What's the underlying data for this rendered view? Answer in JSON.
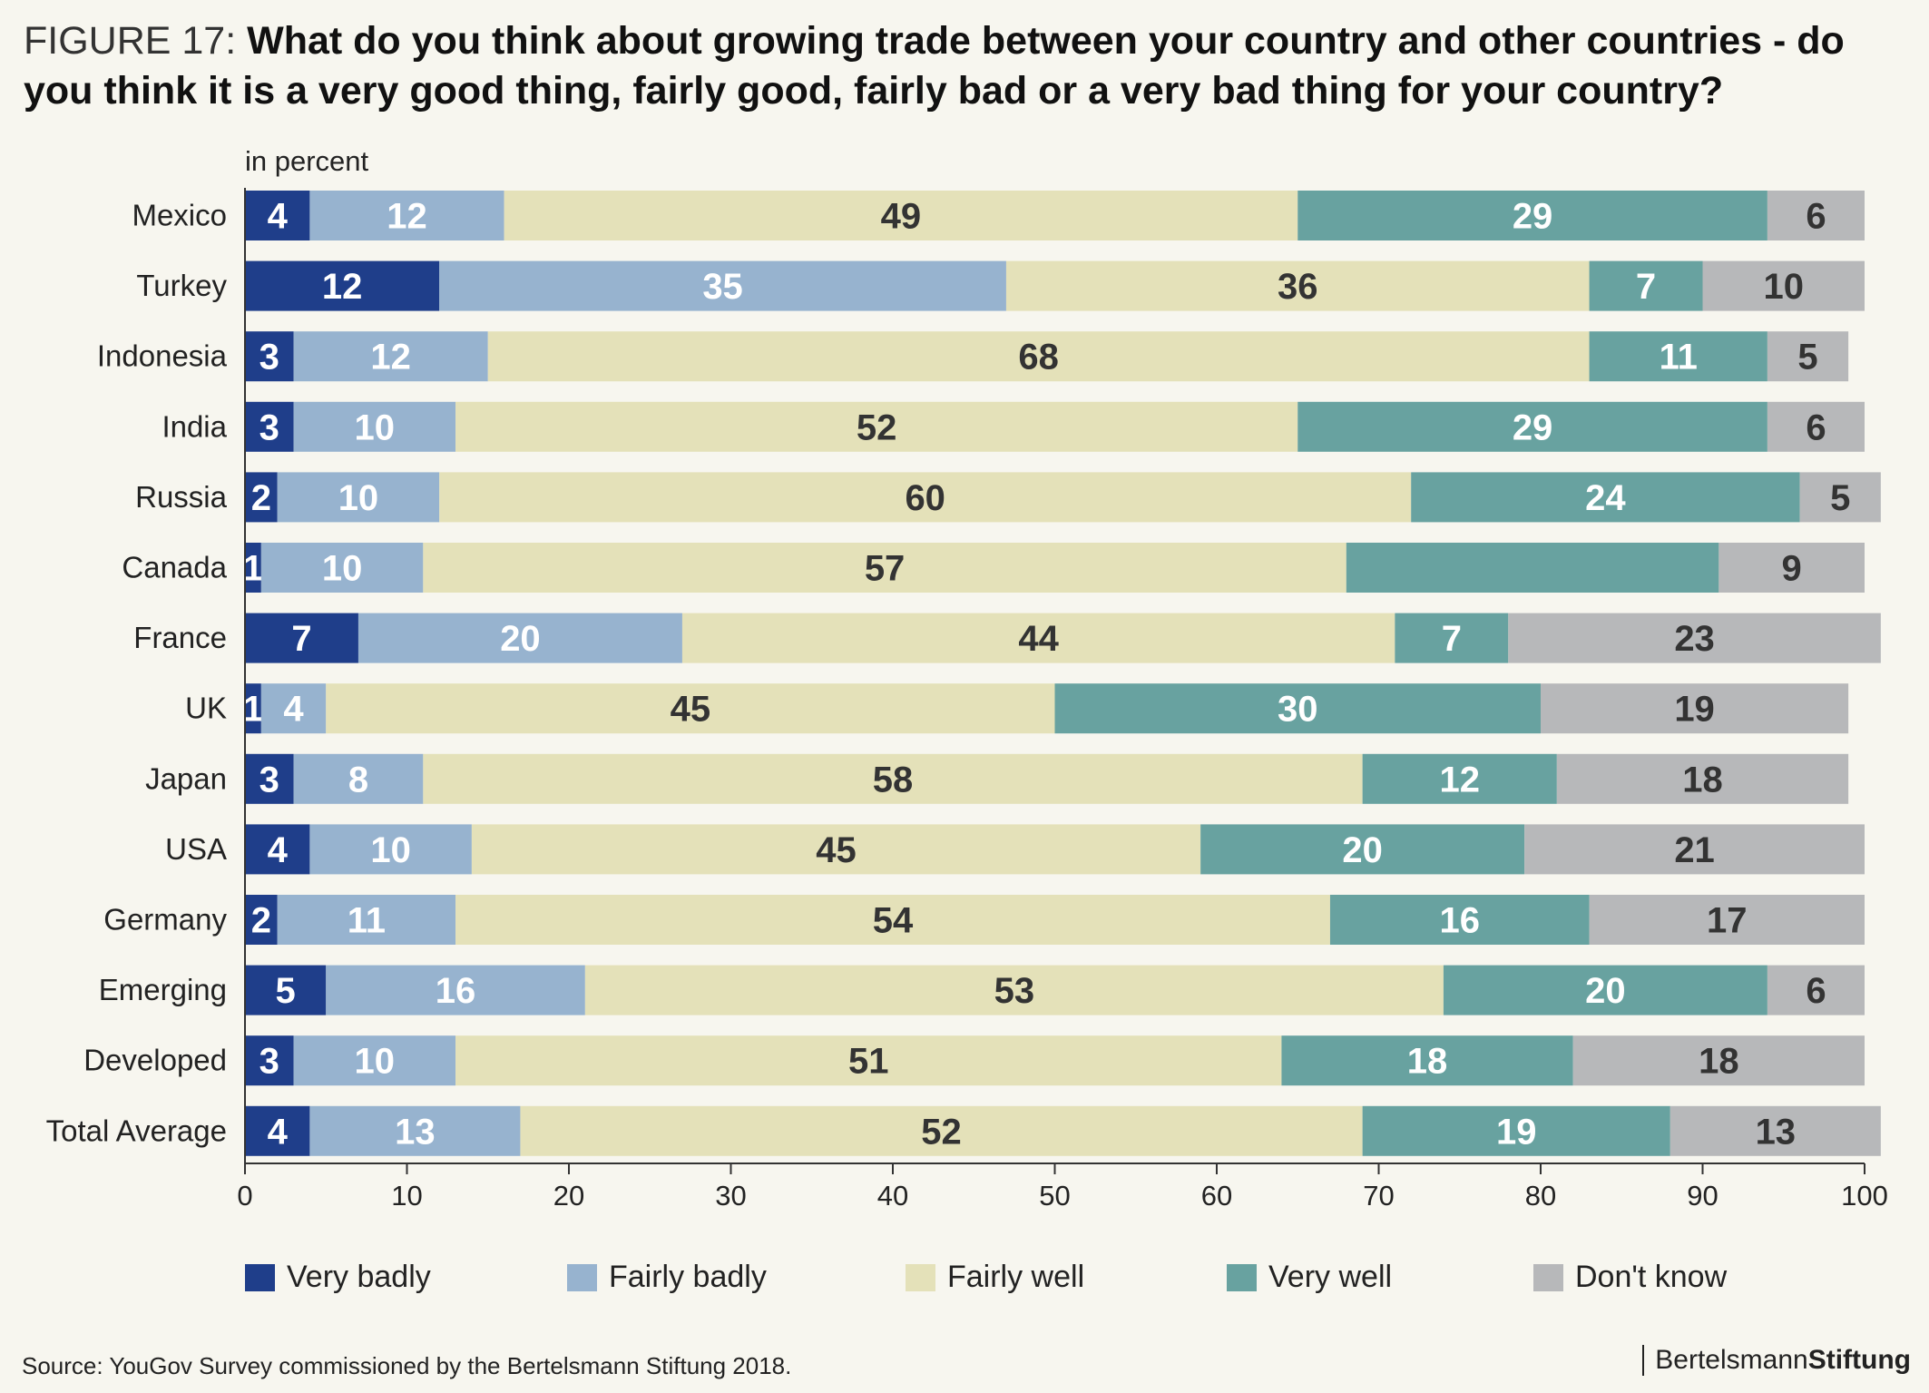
{
  "title": {
    "figure_label": "FIGURE 17:",
    "question": "What do you think about growing trade between your country and other countries - do you think it is a very good thing, fairly good, fairly bad or a very bad thing for your country?"
  },
  "chart_data": {
    "type": "bar",
    "orientation": "horizontal",
    "stacked": true,
    "unit_label": "in percent",
    "xlim": [
      0,
      100
    ],
    "xticks": [
      0,
      10,
      20,
      30,
      40,
      50,
      60,
      70,
      80,
      90,
      100
    ],
    "categories": [
      "Mexico",
      "Turkey",
      "Indonesia",
      "India",
      "Russia",
      "Canada",
      "France",
      "UK",
      "Japan",
      "USA",
      "Germany",
      "Emerging",
      "Developed",
      "Total Average"
    ],
    "series": [
      {
        "name": "Very badly",
        "color": "#1f3e8a",
        "label_color": "#ffffff",
        "values": [
          4,
          12,
          3,
          3,
          2,
          1,
          7,
          1,
          3,
          4,
          2,
          5,
          3,
          4
        ]
      },
      {
        "name": "Fairly badly",
        "color": "#97b3cf",
        "label_color": "#ffffff",
        "values": [
          12,
          35,
          12,
          10,
          10,
          10,
          20,
          4,
          8,
          10,
          11,
          16,
          10,
          13
        ]
      },
      {
        "name": "Fairly well",
        "color": "#e4e1b9",
        "label_color": "#333333",
        "values": [
          49,
          36,
          68,
          52,
          60,
          57,
          44,
          45,
          58,
          45,
          54,
          53,
          51,
          52
        ]
      },
      {
        "name": "Very well",
        "color": "#68a2a0",
        "label_color": "#ffffff",
        "values": [
          29,
          7,
          11,
          29,
          24,
          23,
          7,
          30,
          12,
          20,
          16,
          20,
          18,
          19
        ]
      },
      {
        "name": "Don't know",
        "color": "#b7b8ba",
        "label_color": "#333333",
        "values": [
          6,
          10,
          5,
          6,
          5,
          9,
          23,
          19,
          18,
          21,
          17,
          6,
          18,
          13
        ]
      }
    ],
    "hidden_labels": [
      [
        5,
        3
      ]
    ],
    "legend_position": "bottom",
    "grid": false
  },
  "source": "Source: YouGov Survey commissioned by the Bertelsmann Stiftung 2018.",
  "brand": {
    "part1": "Bertelsmann",
    "part2": "Stiftung"
  }
}
